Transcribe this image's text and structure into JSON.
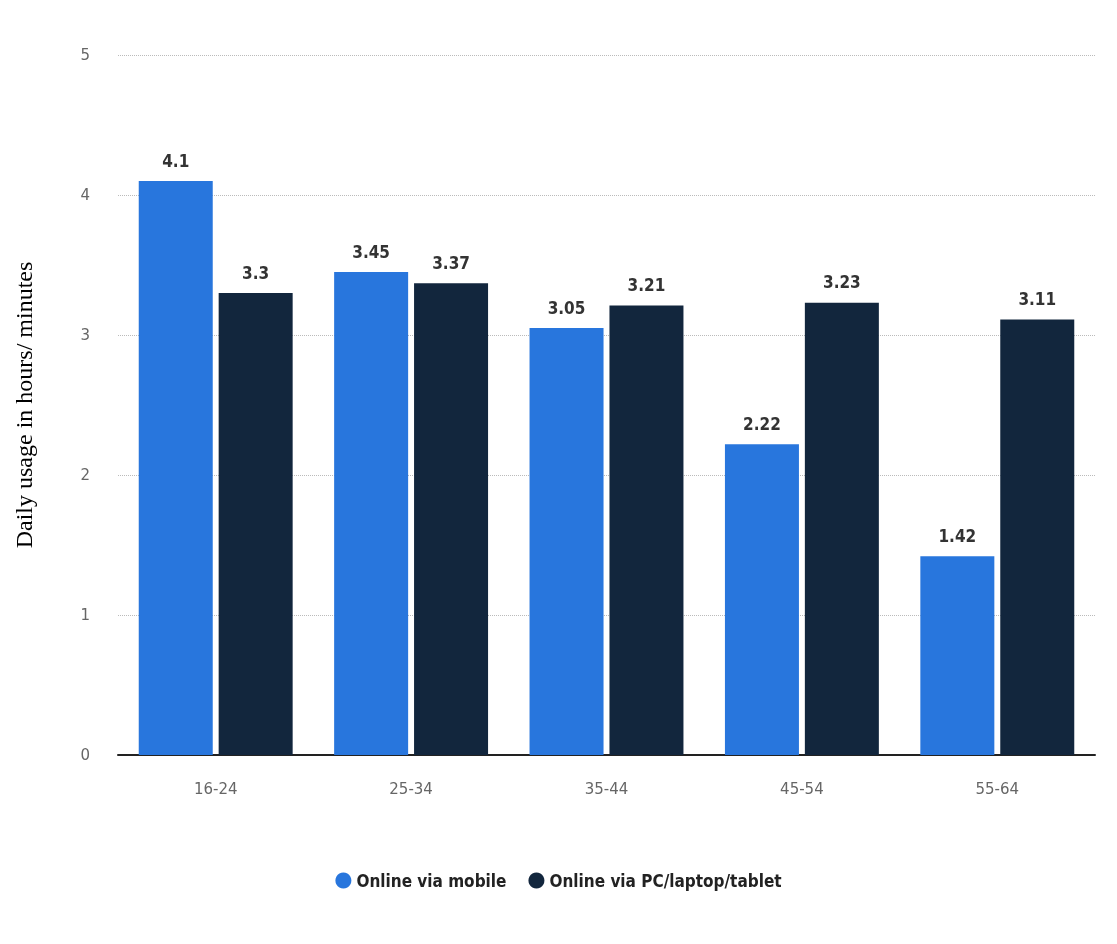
{
  "chart_data": {
    "type": "bar",
    "ylabel": "Daily usage in hours/ minutes",
    "categories": [
      "16-24",
      "25-34",
      "35-44",
      "45-54",
      "55-64"
    ],
    "series": [
      {
        "name": "Online via mobile",
        "color": "#2876dd",
        "values": [
          4.1,
          3.45,
          3.05,
          2.22,
          1.42
        ]
      },
      {
        "name": "Online via PC/laptop/tablet",
        "color": "#12263d",
        "values": [
          3.3,
          3.37,
          3.21,
          3.23,
          3.11
        ]
      }
    ],
    "ylim": [
      0,
      5
    ],
    "yticks": [
      0,
      1,
      2,
      3,
      4,
      5
    ],
    "grid": "y",
    "line_style": "dotted",
    "legend": "bottom",
    "data_labels": true
  }
}
